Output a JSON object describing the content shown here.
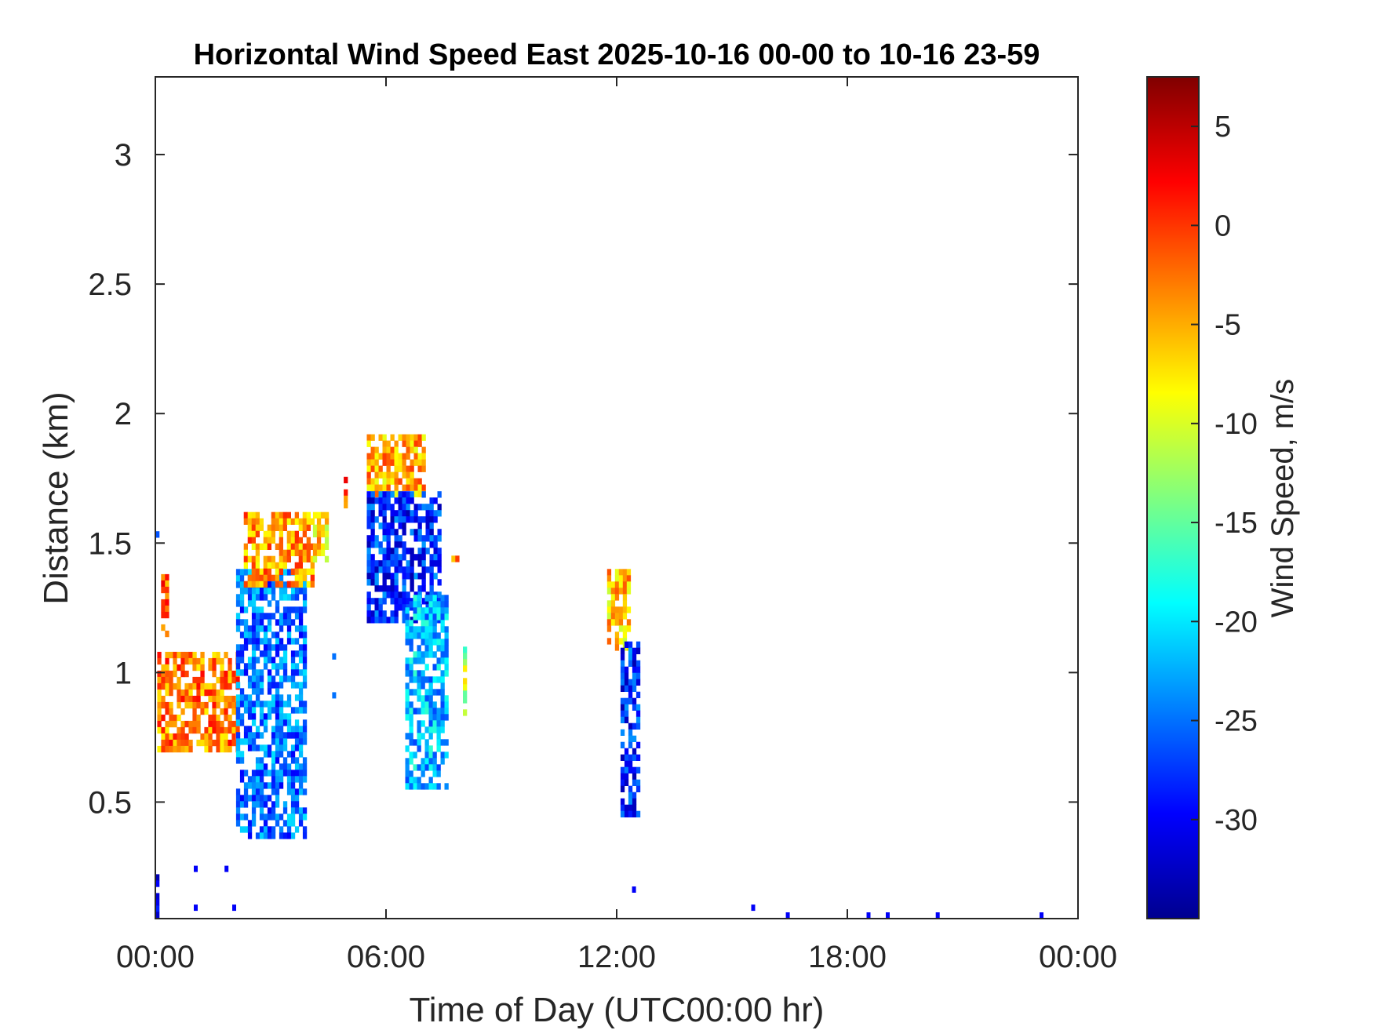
{
  "chart_data": {
    "type": "heatmap",
    "title": "Horizontal Wind Speed East 2025-10-16 00-00 to 10-16 23-59",
    "xlabel": "Time of Day (UTC00:00 hr)",
    "ylabel": "Distance (km)",
    "colorbar_label": "Wind Speed, m/s",
    "x_unit": "hours",
    "xlim": [
      0,
      24
    ],
    "ylim": [
      0.05,
      3.3
    ],
    "clim": [
      -35,
      7.5
    ],
    "colormap": "jet",
    "x_ticks": [
      0,
      6,
      12,
      18,
      24
    ],
    "x_tick_labels": [
      "00:00",
      "06:00",
      "12:00",
      "18:00",
      "00:00"
    ],
    "y_ticks": [
      0.5,
      1,
      1.5,
      2,
      2.5,
      3
    ],
    "y_tick_labels": [
      "0.5",
      "1",
      "1.5",
      "2",
      "2.5",
      "3"
    ],
    "c_ticks": [
      5,
      0,
      -5,
      -10,
      -15,
      -20,
      -25,
      -30
    ],
    "c_tick_labels": [
      "5",
      "0",
      "-5",
      "-10",
      "-15",
      "-20",
      "-25",
      "-30"
    ],
    "grid": false,
    "regions": [
      {
        "x": [
          0.15,
          0.35
        ],
        "y": [
          1.15,
          1.38
        ],
        "value": -2
      },
      {
        "x": [
          0.05,
          2.1
        ],
        "y": [
          0.7,
          1.08
        ],
        "value": -3
      },
      {
        "x": [
          2.1,
          3.9
        ],
        "y": [
          0.38,
          1.4
        ],
        "value": -25
      },
      {
        "x": [
          2.3,
          4.1
        ],
        "y": [
          1.35,
          1.62
        ],
        "value": -4
      },
      {
        "x": [
          4.1,
          4.5
        ],
        "y": [
          1.45,
          1.62
        ],
        "value": -7
      },
      {
        "x": [
          4.9,
          5.0
        ],
        "y": [
          1.65,
          1.78
        ],
        "value": -2
      },
      {
        "x": [
          5.5,
          7.0
        ],
        "y": [
          1.7,
          1.92
        ],
        "value": -5
      },
      {
        "x": [
          5.5,
          7.4
        ],
        "y": [
          1.2,
          1.7
        ],
        "value": -28
      },
      {
        "x": [
          6.5,
          7.55
        ],
        "y": [
          0.55,
          1.3
        ],
        "value": -22
      },
      {
        "x": [
          7.7,
          7.85
        ],
        "y": [
          1.45,
          1.5
        ],
        "value": -2
      },
      {
        "x": [
          8.0,
          8.1
        ],
        "y": [
          0.85,
          1.1
        ],
        "value": -12
      },
      {
        "x": [
          11.75,
          12.35
        ],
        "y": [
          1.1,
          1.4
        ],
        "value": -6
      },
      {
        "x": [
          12.1,
          12.6
        ],
        "y": [
          0.45,
          1.12
        ],
        "value": -28
      },
      {
        "x": [
          0.0,
          0.1
        ],
        "y": [
          0.05,
          0.27
        ],
        "value": -30
      },
      {
        "x": [
          0.0,
          0.1
        ],
        "y": [
          1.5,
          1.57
        ],
        "value": -30
      }
    ],
    "specks": [
      {
        "x": 1.0,
        "y": 0.23,
        "value": -30
      },
      {
        "x": 1.8,
        "y": 0.23,
        "value": -30
      },
      {
        "x": 1.0,
        "y": 0.08,
        "value": -30
      },
      {
        "x": 2.0,
        "y": 0.08,
        "value": -30
      },
      {
        "x": 4.6,
        "y": 1.05,
        "value": -25
      },
      {
        "x": 4.6,
        "y": 0.9,
        "value": -25
      },
      {
        "x": 12.4,
        "y": 0.15,
        "value": -30
      },
      {
        "x": 15.5,
        "y": 0.08,
        "value": -30
      },
      {
        "x": 16.4,
        "y": 0.05,
        "value": -30
      },
      {
        "x": 18.5,
        "y": 0.05,
        "value": -30
      },
      {
        "x": 19.0,
        "y": 0.05,
        "value": -30
      },
      {
        "x": 20.3,
        "y": 0.05,
        "value": -30
      },
      {
        "x": 23.0,
        "y": 0.05,
        "value": -30
      }
    ]
  }
}
